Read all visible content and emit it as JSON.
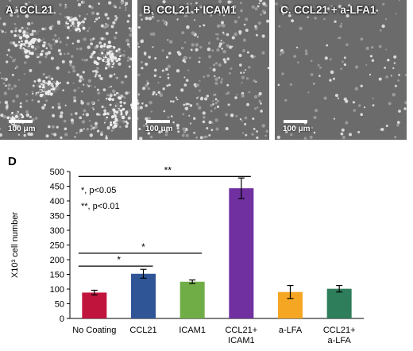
{
  "panels": [
    {
      "label": "A. CCL21",
      "scale": "100 μm",
      "density": 1.0,
      "clusters": 1
    },
    {
      "label": "B. CCL21 + ICAM1",
      "scale": "100 μm",
      "density": 0.8,
      "clusters": 0
    },
    {
      "label": "C. CCL21 + a-LFA1",
      "scale": "100 μm",
      "density": 0.3,
      "clusters": 0
    }
  ],
  "chart_data": {
    "type": "bar",
    "panel_label": "D",
    "ylabel": "X10³ cell number",
    "ylim": [
      0,
      500
    ],
    "yticks": [
      0,
      50,
      100,
      150,
      200,
      250,
      300,
      350,
      400,
      450,
      500
    ],
    "categories": [
      [
        "No Coating"
      ],
      [
        "CCL21"
      ],
      [
        "ICAM1"
      ],
      [
        "CCL21+",
        "ICAM1"
      ],
      [
        "a-LFA"
      ],
      [
        "CCL21+",
        "a-LFA"
      ]
    ],
    "values": [
      88,
      152,
      125,
      443,
      90,
      101
    ],
    "errors": [
      8,
      15,
      6,
      35,
      22,
      11
    ],
    "colors": [
      "#c0143c",
      "#2f5597",
      "#70ad47",
      "#7030a0",
      "#f5a623",
      "#2e7d5b"
    ],
    "legend": [
      "*, p<0.05",
      "**, p<0.01"
    ],
    "significance": [
      {
        "from": 0,
        "to": 3,
        "y": 483,
        "label": "**"
      },
      {
        "from": 0,
        "to": 1,
        "y": 178,
        "label": "*"
      },
      {
        "from": 0,
        "to": 2,
        "y": 222,
        "label": "*"
      }
    ]
  }
}
